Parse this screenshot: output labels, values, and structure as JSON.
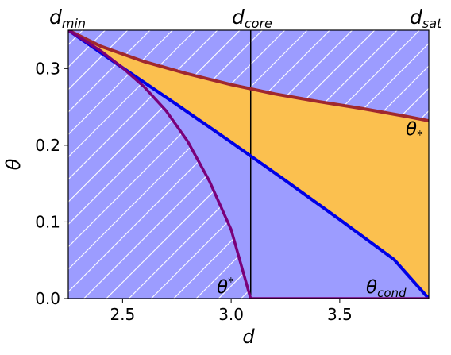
{
  "chart_data": {
    "type": "area",
    "title": "",
    "xlabel": "d",
    "ylabel": "θ",
    "xlim": [
      2.25,
      3.91
    ],
    "ylim": [
      0.0,
      0.35
    ],
    "x_ticks": [
      2.5,
      3.0,
      3.5
    ],
    "x_tick_labels": [
      "2.5",
      "3.0",
      "3.5"
    ],
    "y_ticks": [
      0.0,
      0.1,
      0.2,
      0.3
    ],
    "y_tick_labels": [
      "0.0",
      "0.1",
      "0.2",
      "0.3"
    ],
    "grid": false,
    "colors": {
      "region_blue": "#9c9cff",
      "region_orange": "#fbc04f",
      "hatch": "#ffffff",
      "theta_star_upper": "#a0282e",
      "theta_cond": "#0000e6",
      "theta_star_lower": "#7a007a",
      "core_line": "#000000"
    },
    "series": [
      {
        "label": "θ_*",
        "x": [
          2.25,
          2.4,
          2.6,
          2.8,
          3.0,
          3.2,
          3.4,
          3.6,
          3.8,
          3.91
        ],
        "values": [
          0.35,
          0.329,
          0.309,
          0.293,
          0.279,
          0.267,
          0.257,
          0.248,
          0.238,
          0.232
        ]
      },
      {
        "label": "θ_cond",
        "x": [
          2.25,
          2.5,
          2.75,
          3.0,
          3.25,
          3.5,
          3.75,
          3.91
        ],
        "values": [
          0.35,
          0.301,
          0.253,
          0.204,
          0.154,
          0.103,
          0.051,
          0.0
        ]
      },
      {
        "label": "θ^*",
        "x": [
          2.25,
          2.4,
          2.5,
          2.6,
          2.7,
          2.8,
          2.9,
          3.0,
          3.09,
          3.91
        ],
        "values": [
          0.35,
          0.323,
          0.301,
          0.276,
          0.245,
          0.205,
          0.153,
          0.09,
          0.0,
          0.0
        ]
      }
    ],
    "vertical_lines": [
      3.09
    ],
    "annotations": {
      "d_min": {
        "x": 2.25,
        "base": "d",
        "sub": "min"
      },
      "d_core": {
        "x": 3.09,
        "base": "d",
        "sub": "core"
      },
      "d_sat": {
        "x": 3.91,
        "base": "d",
        "sub": "sat"
      },
      "theta_star_lower": {
        "x": 2.95,
        "y": 0.015,
        "base": "θ",
        "sup": "*"
      },
      "theta_cond": {
        "x": 3.73,
        "y": 0.008,
        "base": "θ",
        "sub": "cond"
      },
      "theta_star_upper": {
        "x": 3.84,
        "y": 0.212,
        "base": "θ",
        "sub": "*"
      }
    }
  }
}
